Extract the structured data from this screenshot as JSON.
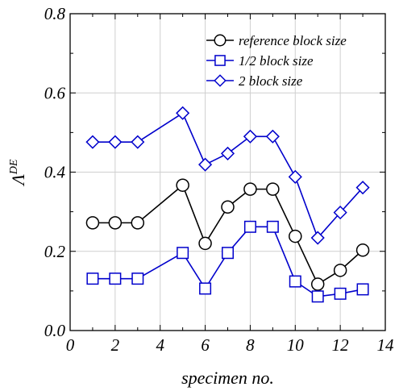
{
  "chart_data": {
    "type": "line",
    "xlabel": "specimen no.",
    "ylabel_main": "Λ",
    "ylabel_sup": "DE",
    "xlim": [
      0,
      14
    ],
    "ylim": [
      0,
      0.8
    ],
    "x_ticks": [
      "0",
      "2",
      "4",
      "6",
      "8",
      "10",
      "12",
      "14"
    ],
    "y_ticks": [
      "0.0",
      "0.2",
      "0.4",
      "0.6",
      "0.8"
    ],
    "grid": true,
    "legend_position": "top-right",
    "series": [
      {
        "name": "reference block size",
        "color": "#000000",
        "marker": "circle",
        "x": [
          1,
          2,
          3,
          5,
          6,
          7,
          8,
          9,
          10,
          11,
          12,
          13
        ],
        "values": [
          0.272,
          0.272,
          0.272,
          0.367,
          0.22,
          0.312,
          0.357,
          0.357,
          0.238,
          0.117,
          0.152,
          0.203
        ]
      },
      {
        "name": "1/2 block size",
        "color": "#0000cc",
        "marker": "square",
        "x": [
          1,
          2,
          3,
          5,
          6,
          7,
          8,
          9,
          10,
          11,
          12,
          13
        ],
        "values": [
          0.131,
          0.131,
          0.131,
          0.196,
          0.106,
          0.196,
          0.262,
          0.262,
          0.124,
          0.086,
          0.093,
          0.104
        ]
      },
      {
        "name": "2 block size",
        "color": "#0000cc",
        "marker": "diamond",
        "x": [
          1,
          2,
          3,
          5,
          6,
          7,
          8,
          9,
          10,
          11,
          12,
          13
        ],
        "values": [
          0.476,
          0.476,
          0.476,
          0.549,
          0.419,
          0.447,
          0.49,
          0.49,
          0.388,
          0.234,
          0.298,
          0.361
        ]
      }
    ]
  }
}
